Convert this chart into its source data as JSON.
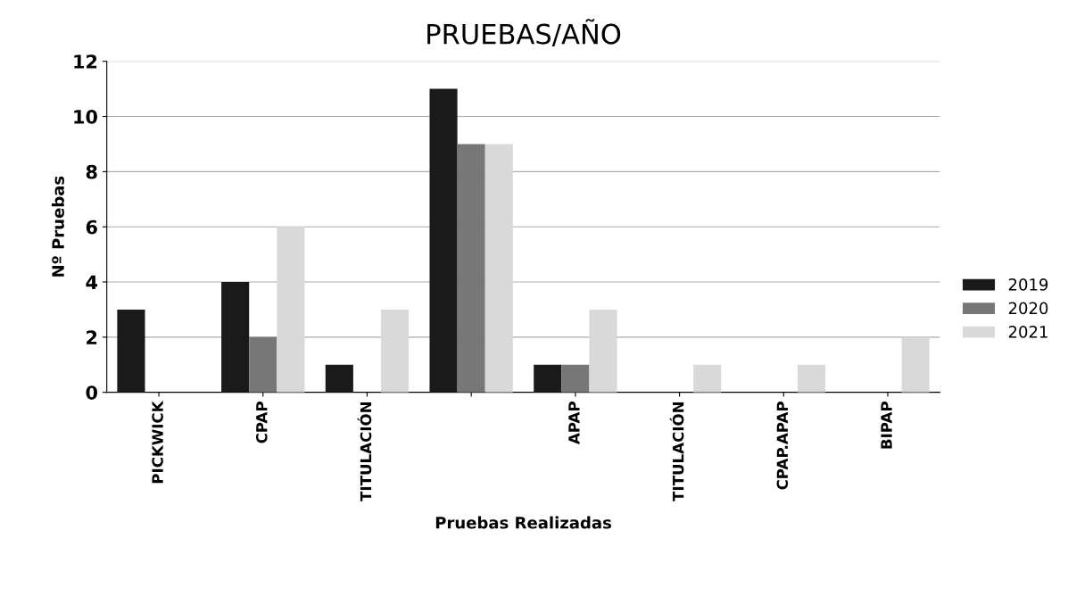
{
  "chart_data": {
    "type": "bar",
    "title": "PRUEBAS/AÑO",
    "xlabel": "Pruebas Realizadas",
    "ylabel": "Nº Pruebas",
    "categories": [
      "PICKWICK",
      "CPAP",
      "TITULACIÓN",
      null,
      "APAP",
      "TITULACIÓN",
      "CPAP.APAP",
      "BIPAP"
    ],
    "series": [
      {
        "name": "2019",
        "color": "#1a1a1a",
        "values": [
          3,
          4,
          1,
          11,
          1,
          0,
          0,
          0
        ]
      },
      {
        "name": "2020",
        "color": "#777777",
        "values": [
          0,
          2,
          0,
          9,
          1,
          0,
          0,
          0
        ]
      },
      {
        "name": "2021",
        "color": "#d9d9d9",
        "values": [
          0,
          6,
          3,
          9,
          3,
          1,
          1,
          2
        ]
      }
    ],
    "ylim": [
      0,
      12
    ],
    "yticks": [
      0,
      2,
      4,
      6,
      8,
      10,
      12
    ],
    "grid": "y",
    "legend": "right"
  }
}
